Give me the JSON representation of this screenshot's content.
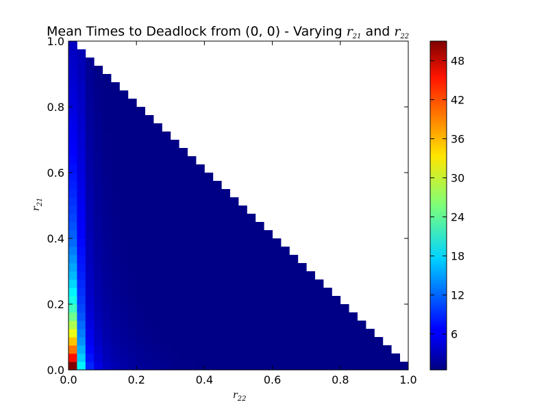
{
  "chart_data": {
    "type": "heatmap",
    "title_prefix": "Mean Times to Deadlock from (0, 0) - Varying ",
    "title_var1": "r",
    "title_var1_sub": "21",
    "title_and": " and ",
    "title_var2": "r",
    "title_var2_sub": "22",
    "xlabel": "r",
    "xlabel_sub": "22",
    "ylabel": "r",
    "ylabel_sub": "21",
    "xlim": [
      0.0,
      1.0
    ],
    "ylim": [
      0.0,
      1.0
    ],
    "x_ticks": [
      "0.0",
      "0.2",
      "0.4",
      "0.6",
      "0.8",
      "1.0"
    ],
    "y_ticks": [
      "0.0",
      "0.2",
      "0.4",
      "0.6",
      "0.8",
      "1.0"
    ],
    "colorbar_ticks": [
      "6",
      "12",
      "18",
      "24",
      "30",
      "36",
      "42",
      "48"
    ],
    "colorbar_range": [
      0.5,
      51
    ],
    "colormap": "jet",
    "grid_n": 40,
    "region": "r21 + r22 <= 1",
    "column0_values": [
      51,
      44,
      39,
      35,
      31,
      28,
      25,
      22.5,
      20.5,
      19,
      17.5,
      16,
      15,
      14,
      13,
      12,
      11.5,
      10.8,
      10.2,
      9.7,
      9.2,
      8.7,
      8.3,
      7.9,
      7.5,
      7.1,
      6.8,
      6.5,
      6.2,
      6,
      5.7,
      5.4,
      5.2,
      5,
      4.8,
      4.5,
      4.3,
      4.1,
      3.9,
      3.8
    ],
    "column1_values": [
      19,
      17,
      15.5,
      14,
      13,
      12,
      11,
      10.3,
      9.7,
      9.2,
      8.8,
      8.4,
      8,
      7.7,
      7.4,
      7.1,
      6.8,
      6.6,
      6.4,
      6.2,
      6,
      5.8,
      5.6,
      5.4,
      5.2,
      5,
      4.9,
      4.7,
      4.6,
      4.4,
      4.3,
      4.1,
      4,
      3.8,
      3.7,
      3.5,
      3.4,
      3.3,
      3.2,
      3.1
    ],
    "interior_decay": 1.15,
    "interior_min": 0.8
  }
}
